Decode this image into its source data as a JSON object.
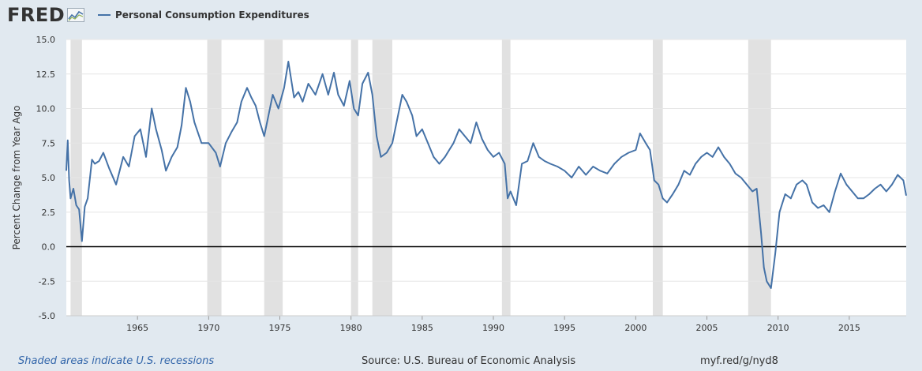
{
  "header": {
    "logo_text": "FRED",
    "legend_label": "Personal Consumption Expenditures"
  },
  "footer": {
    "recession_note": "Shaded areas indicate U.S. recessions",
    "source": "Source: U.S. Bureau of Economic Analysis",
    "short_link": "myf.red/g/nyd8"
  },
  "colors": {
    "series": "#4572a7",
    "recession_shade": "#e1e1e1",
    "background": "#e1e9f0",
    "plot_background": "#ffffff",
    "zero_line": "#000000"
  },
  "chart_data": {
    "type": "line",
    "title": "",
    "ylabel": "Percent Change from Year Ago",
    "xlabel": "",
    "ylim": [
      -5.0,
      15.0
    ],
    "xlim": [
      1960.0,
      2019.0
    ],
    "y_ticks": [
      "-5.0",
      "-2.5",
      "0.0",
      "2.5",
      "5.0",
      "7.5",
      "10.0",
      "12.5",
      "15.0"
    ],
    "x_ticks": [
      "1965",
      "1970",
      "1975",
      "1980",
      "1985",
      "1990",
      "1995",
      "2000",
      "2005",
      "2010",
      "2015"
    ],
    "grid": true,
    "legend": "top-left",
    "recessions": [
      [
        1960.3,
        1961.1
      ],
      [
        1969.9,
        1970.9
      ],
      [
        1973.9,
        1975.2
      ],
      [
        1980.0,
        1980.5
      ],
      [
        1981.5,
        1982.9
      ],
      [
        1990.6,
        1991.2
      ],
      [
        2001.2,
        2001.9
      ],
      [
        2007.9,
        2009.5
      ]
    ],
    "series": [
      {
        "name": "Personal Consumption Expenditures",
        "x": [
          1960.0,
          1960.1,
          1960.2,
          1960.3,
          1960.5,
          1960.7,
          1960.9,
          1961.1,
          1961.3,
          1961.5,
          1961.8,
          1962.0,
          1962.3,
          1962.6,
          1963.0,
          1963.5,
          1964.0,
          1964.4,
          1964.8,
          1965.2,
          1965.6,
          1966.0,
          1966.3,
          1966.7,
          1967.0,
          1967.4,
          1967.8,
          1968.1,
          1968.4,
          1968.7,
          1969.0,
          1969.5,
          1970.0,
          1970.5,
          1970.8,
          1971.2,
          1971.6,
          1972.0,
          1972.3,
          1972.7,
          1973.0,
          1973.3,
          1973.6,
          1973.9,
          1974.2,
          1974.5,
          1974.9,
          1975.3,
          1975.6,
          1976.0,
          1976.3,
          1976.6,
          1977.0,
          1977.5,
          1978.0,
          1978.4,
          1978.8,
          1979.1,
          1979.5,
          1979.9,
          1980.2,
          1980.5,
          1980.8,
          1981.2,
          1981.5,
          1981.8,
          1982.1,
          1982.5,
          1982.9,
          1983.2,
          1983.6,
          1983.9,
          1984.3,
          1984.6,
          1985.0,
          1985.4,
          1985.8,
          1986.2,
          1986.6,
          1986.9,
          1987.2,
          1987.6,
          1988.0,
          1988.4,
          1988.8,
          1989.2,
          1989.6,
          1990.0,
          1990.4,
          1990.8,
          1991.0,
          1991.2,
          1991.6,
          1992.0,
          1992.4,
          1992.8,
          1993.2,
          1993.6,
          1994.0,
          1994.5,
          1995.0,
          1995.5,
          1996.0,
          1996.5,
          1997.0,
          1997.5,
          1998.0,
          1998.5,
          1999.0,
          1999.5,
          2000.0,
          2000.3,
          2000.7,
          2001.0,
          2001.3,
          2001.6,
          2001.9,
          2002.2,
          2002.6,
          2003.0,
          2003.4,
          2003.8,
          2004.2,
          2004.6,
          2005.0,
          2005.4,
          2005.8,
          2006.2,
          2006.6,
          2007.0,
          2007.4,
          2007.8,
          2008.2,
          2008.5,
          2008.8,
          2009.0,
          2009.2,
          2009.5,
          2009.8,
          2010.1,
          2010.5,
          2010.9,
          2011.3,
          2011.7,
          2012.0,
          2012.4,
          2012.8,
          2013.2,
          2013.6,
          2014.0,
          2014.4,
          2014.8,
          2015.2,
          2015.6,
          2016.0,
          2016.4,
          2016.8,
          2017.2,
          2017.6,
          2018.0,
          2018.4,
          2018.8,
          2019.0
        ],
        "values": [
          5.5,
          7.7,
          4.8,
          3.5,
          4.2,
          3.0,
          2.7,
          0.4,
          2.9,
          3.5,
          6.3,
          6.0,
          6.2,
          6.8,
          5.7,
          4.5,
          6.5,
          5.8,
          8.0,
          8.5,
          6.5,
          10.0,
          8.5,
          7.0,
          5.5,
          6.5,
          7.2,
          8.8,
          11.5,
          10.5,
          9.0,
          7.5,
          7.5,
          6.8,
          5.8,
          7.5,
          8.3,
          9.0,
          10.5,
          11.5,
          10.8,
          10.2,
          9.0,
          8.0,
          9.5,
          11.0,
          10.0,
          11.5,
          13.4,
          10.8,
          11.2,
          10.5,
          11.8,
          11.0,
          12.5,
          11.0,
          12.6,
          11.0,
          10.2,
          12.0,
          10.0,
          9.5,
          11.8,
          12.6,
          11.0,
          8.0,
          6.5,
          6.8,
          7.5,
          9.0,
          11.0,
          10.5,
          9.5,
          8.0,
          8.5,
          7.5,
          6.5,
          6.0,
          6.5,
          7.0,
          7.5,
          8.5,
          8.0,
          7.5,
          9.0,
          7.8,
          7.0,
          6.5,
          6.8,
          6.0,
          3.5,
          4.0,
          3.0,
          6.0,
          6.2,
          7.5,
          6.5,
          6.2,
          6.0,
          5.8,
          5.5,
          5.0,
          5.8,
          5.2,
          5.8,
          5.5,
          5.3,
          6.0,
          6.5,
          6.8,
          7.0,
          8.2,
          7.5,
          7.0,
          4.8,
          4.5,
          3.5,
          3.2,
          3.8,
          4.5,
          5.5,
          5.2,
          6.0,
          6.5,
          6.8,
          6.5,
          7.2,
          6.5,
          6.0,
          5.3,
          5.0,
          4.5,
          4.0,
          4.2,
          1.0,
          -1.5,
          -2.5,
          -3.0,
          -0.5,
          2.5,
          3.8,
          3.5,
          4.5,
          4.8,
          4.5,
          3.2,
          2.8,
          3.0,
          2.5,
          4.0,
          5.3,
          4.5,
          4.0,
          3.5,
          3.5,
          3.8,
          4.2,
          4.5,
          4.0,
          4.5,
          5.2,
          4.8,
          3.7
        ]
      }
    ]
  }
}
